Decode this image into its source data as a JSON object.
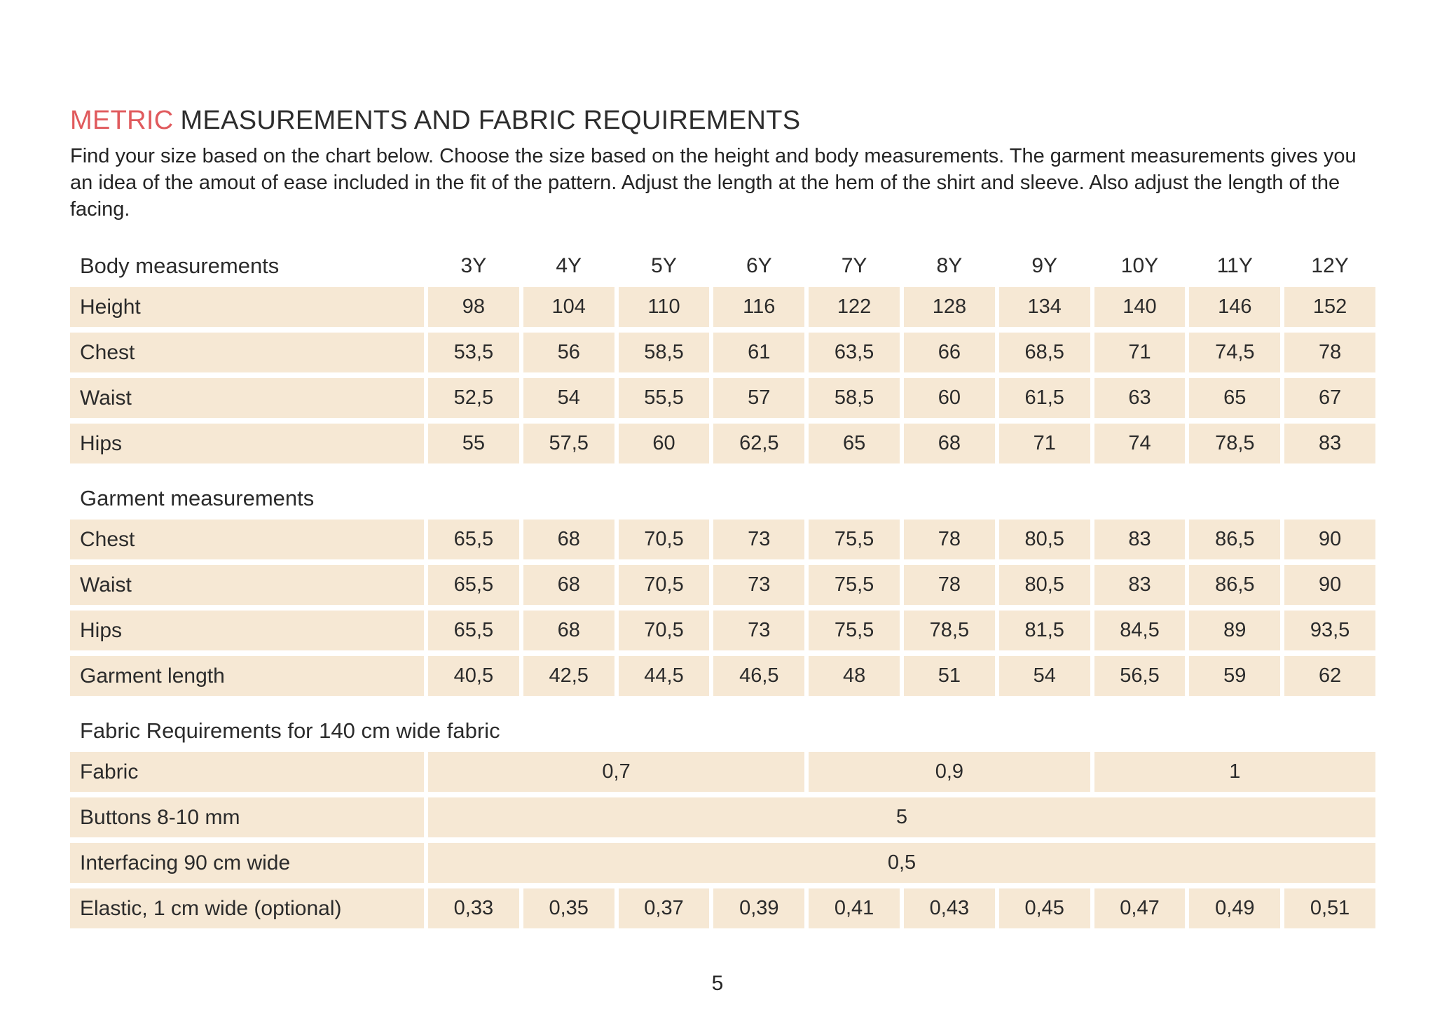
{
  "title": {
    "highlight": "METRIC",
    "rest": "MEASUREMENTS AND FABRIC REQUIREMENTS"
  },
  "intro": "Find your size based on the chart below. Choose the size based on the height and body measurements. The garment measurements gives you an idea of the amout of ease included in the fit of the pattern. Adjust the length at the hem of the shirt and sleeve. Also adjust the length of the facing.",
  "page_number": "5",
  "colors": {
    "accent_red": "#e05a5d",
    "cell_beige": "#f6e8d4",
    "text_dark": "#2b2b2b"
  },
  "sizes": [
    "3Y",
    "4Y",
    "5Y",
    "6Y",
    "7Y",
    "8Y",
    "9Y",
    "10Y",
    "11Y",
    "12Y"
  ],
  "sections": [
    {
      "heading": "Body measurements",
      "show_sizes": true,
      "rows": [
        {
          "label": "Height",
          "values": [
            "98",
            "104",
            "110",
            "116",
            "122",
            "128",
            "134",
            "140",
            "146",
            "152"
          ]
        },
        {
          "label": "Chest",
          "values": [
            "53,5",
            "56",
            "58,5",
            "61",
            "63,5",
            "66",
            "68,5",
            "71",
            "74,5",
            "78"
          ]
        },
        {
          "label": "Waist",
          "values": [
            "52,5",
            "54",
            "55,5",
            "57",
            "58,5",
            "60",
            "61,5",
            "63",
            "65",
            "67"
          ]
        },
        {
          "label": "Hips",
          "values": [
            "55",
            "57,5",
            "60",
            "62,5",
            "65",
            "68",
            "71",
            "74",
            "78,5",
            "83"
          ]
        }
      ]
    },
    {
      "heading": "Garment measurements",
      "show_sizes": false,
      "rows": [
        {
          "label": "Chest",
          "values": [
            "65,5",
            "68",
            "70,5",
            "73",
            "75,5",
            "78",
            "80,5",
            "83",
            "86,5",
            "90"
          ]
        },
        {
          "label": "Waist",
          "values": [
            "65,5",
            "68",
            "70,5",
            "73",
            "75,5",
            "78",
            "80,5",
            "83",
            "86,5",
            "90"
          ]
        },
        {
          "label": "Hips",
          "values": [
            "65,5",
            "68",
            "70,5",
            "73",
            "75,5",
            "78,5",
            "81,5",
            "84,5",
            "89",
            "93,5"
          ]
        },
        {
          "label": "Garment length",
          "values": [
            "40,5",
            "42,5",
            "44,5",
            "46,5",
            "48",
            "51",
            "54",
            "56,5",
            "59",
            "62"
          ]
        }
      ]
    },
    {
      "heading": "Fabric Requirements for 140 cm wide fabric",
      "show_sizes": false,
      "rows": [
        {
          "label": "Fabric",
          "spans": [
            {
              "value": "0,7",
              "cols": 4
            },
            {
              "value": "0,9",
              "cols": 3
            },
            {
              "value": "1",
              "cols": 3
            }
          ]
        },
        {
          "label": "Buttons 8-10 mm",
          "spans": [
            {
              "value": "5",
              "cols": 10
            }
          ]
        },
        {
          "label": "Interfacing 90 cm wide",
          "spans": [
            {
              "value": "0,5",
              "cols": 10
            }
          ]
        },
        {
          "label": "Elastic, 1 cm wide (optional)",
          "values": [
            "0,33",
            "0,35",
            "0,37",
            "0,39",
            "0,41",
            "0,43",
            "0,45",
            "0,47",
            "0,49",
            "0,51"
          ]
        }
      ]
    }
  ]
}
